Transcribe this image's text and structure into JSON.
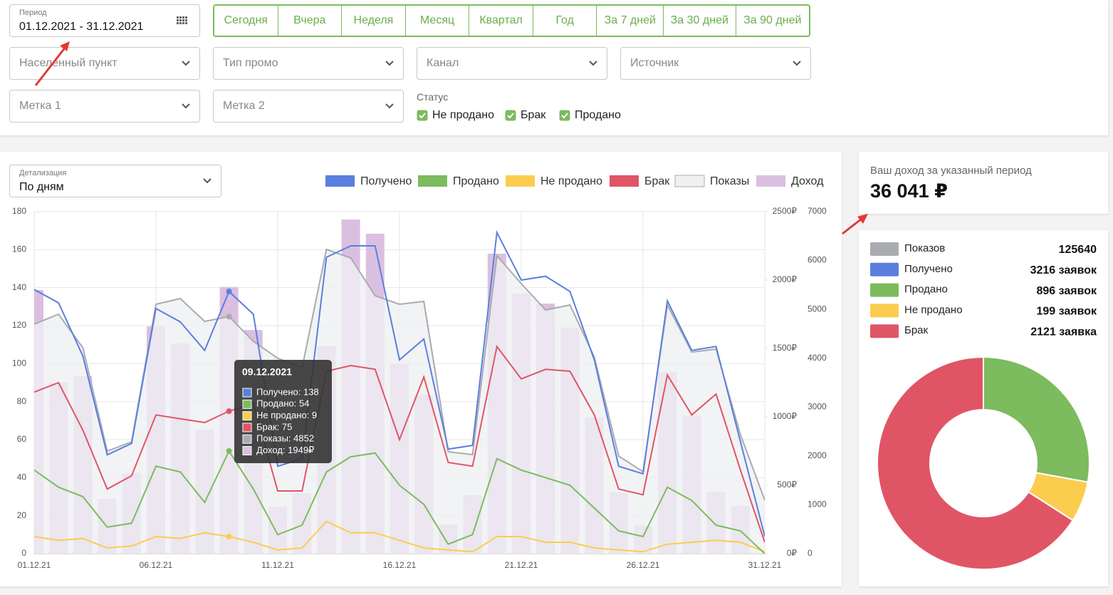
{
  "filters": {
    "period": {
      "label": "Период",
      "value": "01.12.2021 - 31.12.2021"
    },
    "presets": [
      "Сегодня",
      "Вчера",
      "Неделя",
      "Месяц",
      "Квартал",
      "Год",
      "За 7 дней",
      "За 30 дней",
      "За 90 дней"
    ],
    "dropdowns": [
      "Населенный пункт",
      "Тип промо",
      "Канал",
      "Источник",
      "Метка 1",
      "Метка 2"
    ],
    "status": {
      "label": "Статус",
      "options": [
        "Не продано",
        "Брак",
        "Продано"
      ]
    }
  },
  "detail": {
    "label": "Детализация",
    "value": "По дням"
  },
  "income": {
    "label": "Ваш доход за указанный период",
    "value": "36 041 ₽"
  },
  "stats": [
    {
      "name": "Показов",
      "color": "#a9abb0",
      "value": 125640
    },
    {
      "name": "Получено",
      "color": "#5b7fde",
      "value": 3216,
      "value_label": "3216 заявок"
    },
    {
      "name": "Продано",
      "color": "#7cbb5e",
      "value": 896,
      "value_label": "896 заявок"
    },
    {
      "name": "Не продано",
      "color": "#fccc4f",
      "value": 199,
      "value_label": "199 заявок"
    },
    {
      "name": "Брак",
      "color": "#e05566",
      "value": 2121,
      "value_label": "2121 заявка"
    }
  ],
  "chart_data": [
    {
      "type": "combo",
      "categories": [
        "01.12.21",
        null,
        null,
        null,
        null,
        "06.12.21",
        null,
        null,
        null,
        null,
        "11.12.21",
        null,
        null,
        null,
        null,
        "16.12.21",
        null,
        null,
        null,
        null,
        "21.12.21",
        null,
        null,
        null,
        null,
        "26.12.21",
        null,
        null,
        null,
        null,
        "31.12.21"
      ],
      "series": [
        {
          "name": "Получено",
          "type": "line",
          "axis": "y",
          "color": "#5b7fde",
          "values": [
            139,
            132,
            104,
            52,
            58,
            129,
            122,
            107,
            138,
            126,
            46,
            50,
            156,
            162,
            162,
            102,
            113,
            55,
            57,
            169,
            144,
            146,
            138,
            102,
            46,
            42,
            133,
            107,
            109,
            59,
            9
          ]
        },
        {
          "name": "Продано",
          "type": "line",
          "axis": "y",
          "color": "#7cbb5e",
          "values": [
            44,
            35,
            30,
            14,
            16,
            46,
            43,
            27,
            54,
            34,
            10,
            15,
            43,
            51,
            53,
            36,
            26,
            5,
            10,
            50,
            44,
            40,
            36,
            24,
            12,
            9,
            35,
            28,
            15,
            12,
            0
          ]
        },
        {
          "name": "Не продано",
          "type": "line",
          "axis": "y",
          "color": "#fccc4f",
          "values": [
            9,
            7,
            8,
            3,
            4,
            9,
            8,
            11,
            9,
            6,
            2,
            3,
            17,
            11,
            11,
            7,
            3,
            2,
            1,
            9,
            9,
            6,
            6,
            3,
            2,
            1,
            5,
            6,
            7,
            6,
            1
          ]
        },
        {
          "name": "Брак",
          "type": "line",
          "axis": "y",
          "color": "#e05566",
          "values": [
            85,
            90,
            65,
            34,
            41,
            73,
            71,
            69,
            75,
            79,
            33,
            33,
            96,
            99,
            97,
            60,
            93,
            48,
            46,
            109,
            92,
            97,
            96,
            73,
            34,
            31,
            94,
            73,
            84,
            44,
            6
          ]
        },
        {
          "name": "Показы",
          "type": "area",
          "axis": "y3",
          "color": "#a9abb0",
          "fill": "#eff0f2",
          "values": [
            4696,
            4900,
            4215,
            2100,
            2290,
            5104,
            5221,
            4754,
            4852,
            4346,
            4000,
            3800,
            6227,
            6052,
            5279,
            5104,
            5163,
            2085,
            2027,
            6096,
            5527,
            4988,
            5090,
            4025,
            1998,
            1677,
            5090,
            4127,
            4185,
            2435,
            1094
          ]
        },
        {
          "name": "Доход",
          "type": "bar",
          "axis": "y2",
          "color": "#dbbfe0",
          "values": [
            1927,
            1250,
            1297,
            401,
            589,
            1661,
            1536,
            906,
            1949,
            1635,
            344,
            443,
            1516,
            2443,
            2339,
            1385,
            1161,
            214,
            427,
            2193,
            1901,
            1828,
            1651,
            995,
            448,
            203,
            1328,
            1010,
            453,
            349,
            0
          ]
        }
      ],
      "ylim": [
        0,
        180
      ],
      "yticks": [
        0,
        20,
        40,
        60,
        80,
        100,
        120,
        140,
        160,
        180
      ],
      "y2lim": [
        0,
        2500
      ],
      "y2ticks": [
        {
          "value": 0,
          "label": "0₽"
        },
        {
          "value": 500,
          "label": "500₽"
        },
        {
          "value": 1000,
          "label": "1000₽"
        },
        {
          "value": 1500,
          "label": "1500₽"
        },
        {
          "value": 2000,
          "label": "2000₽"
        },
        {
          "value": 2500,
          "label": "2500₽"
        }
      ],
      "y3lim": [
        0,
        7000
      ],
      "y3ticks": [
        0,
        1000,
        2000,
        3000,
        4000,
        5000,
        6000,
        7000
      ],
      "grid": true,
      "legend": "top-right",
      "tooltip": {
        "title": "09.12.2021",
        "lines": [
          "Получено: 138",
          "Продано: 54",
          "Не продано: 9",
          "Брак: 75",
          "Показы: 4852",
          "Доход: 1949₽"
        ]
      }
    },
    {
      "type": "donut",
      "categories": [
        "Продано",
        "Не продано",
        "Брак"
      ],
      "values": [
        896,
        199,
        2121
      ],
      "colors": [
        "#7cbb5e",
        "#fccc4f",
        "#e05566"
      ]
    }
  ]
}
